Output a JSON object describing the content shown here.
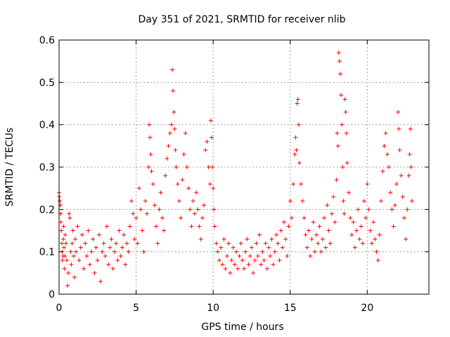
{
  "chart_data": {
    "type": "scatter",
    "title": "Day 351 of 2021, SRMTID for receiver nlib",
    "xlabel": "GPS time / hours",
    "ylabel": "SRMTID / TECUs",
    "xlim": [
      0,
      24
    ],
    "ylim": [
      0,
      0.6
    ],
    "x_ticks": [
      0,
      5,
      10,
      15,
      20
    ],
    "x_tick_labels": [
      "0",
      "5",
      "10",
      "15",
      "20"
    ],
    "y_ticks": [
      0,
      0.1,
      0.2,
      0.3,
      0.4,
      0.5,
      0.6
    ],
    "y_tick_labels": [
      "0",
      "0.1",
      "0.2",
      "0.3",
      "0.4",
      "0.5",
      "0.6"
    ],
    "grid": true,
    "marker": "plus",
    "color": "#ff0000",
    "series": [
      {
        "name": "SRMTID",
        "points": [
          [
            0.0,
            0.24
          ],
          [
            0.02,
            0.23
          ],
          [
            0.05,
            0.22
          ],
          [
            0.08,
            0.21
          ],
          [
            0.1,
            0.19
          ],
          [
            0.12,
            0.17
          ],
          [
            0.15,
            0.15
          ],
          [
            0.18,
            0.12
          ],
          [
            0.2,
            0.1
          ],
          [
            0.22,
            0.08
          ],
          [
            0.25,
            0.09
          ],
          [
            0.28,
            0.13
          ],
          [
            0.3,
            0.16
          ],
          [
            0.32,
            0.11
          ],
          [
            0.35,
            0.06
          ],
          [
            0.38,
            0.09
          ],
          [
            0.4,
            0.14
          ],
          [
            0.45,
            0.12
          ],
          [
            0.5,
            0.08
          ],
          [
            0.55,
            0.02
          ],
          [
            0.6,
            0.05
          ],
          [
            0.65,
            0.19
          ],
          [
            0.7,
            0.18
          ],
          [
            0.75,
            0.1
          ],
          [
            0.8,
            0.07
          ],
          [
            0.85,
            0.12
          ],
          [
            0.9,
            0.15
          ],
          [
            0.95,
            0.09
          ],
          [
            1.0,
            0.04
          ],
          [
            1.05,
            0.13
          ],
          [
            1.1,
            0.1
          ],
          [
            1.2,
            0.16
          ],
          [
            1.3,
            0.08
          ],
          [
            1.4,
            0.11
          ],
          [
            1.5,
            0.14
          ],
          [
            1.6,
            0.06
          ],
          [
            1.7,
            0.12
          ],
          [
            1.8,
            0.09
          ],
          [
            1.9,
            0.15
          ],
          [
            2.0,
            0.07
          ],
          [
            2.1,
            0.1
          ],
          [
            2.2,
            0.13
          ],
          [
            2.3,
            0.05
          ],
          [
            2.4,
            0.11
          ],
          [
            2.5,
            0.08
          ],
          [
            2.6,
            0.14
          ],
          [
            2.7,
            0.03
          ],
          [
            2.8,
            0.1
          ],
          [
            2.9,
            0.12
          ],
          [
            3.0,
            0.09
          ],
          [
            3.1,
            0.16
          ],
          [
            3.2,
            0.07
          ],
          [
            3.3,
            0.11
          ],
          [
            3.4,
            0.13
          ],
          [
            3.5,
            0.06
          ],
          [
            3.6,
            0.1
          ],
          [
            3.7,
            0.12
          ],
          [
            3.8,
            0.08
          ],
          [
            3.9,
            0.15
          ],
          [
            4.0,
            0.09
          ],
          [
            4.1,
            0.11
          ],
          [
            4.2,
            0.14
          ],
          [
            4.3,
            0.07
          ],
          [
            4.4,
            0.12
          ],
          [
            4.5,
            0.1
          ],
          [
            4.6,
            0.16
          ],
          [
            4.7,
            0.22
          ],
          [
            4.8,
            0.19
          ],
          [
            4.9,
            0.13
          ],
          [
            5.0,
            0.18
          ],
          [
            5.1,
            0.12
          ],
          [
            5.2,
            0.25
          ],
          [
            5.3,
            0.2
          ],
          [
            5.4,
            0.15
          ],
          [
            5.5,
            0.1
          ],
          [
            5.6,
            0.22
          ],
          [
            5.7,
            0.19
          ],
          [
            5.8,
            0.3
          ],
          [
            5.85,
            0.4
          ],
          [
            5.9,
            0.37
          ],
          [
            5.95,
            0.33
          ],
          [
            6.0,
            0.29
          ],
          [
            6.1,
            0.26
          ],
          [
            6.2,
            0.21
          ],
          [
            6.3,
            0.16
          ],
          [
            6.4,
            0.12
          ],
          [
            6.5,
            0.2
          ],
          [
            6.6,
            0.24
          ],
          [
            6.7,
            0.18
          ],
          [
            6.8,
            0.15
          ],
          [
            6.9,
            0.28
          ],
          [
            7.0,
            0.32
          ],
          [
            7.1,
            0.35
          ],
          [
            7.2,
            0.38
          ],
          [
            7.3,
            0.4
          ],
          [
            7.35,
            0.53
          ],
          [
            7.4,
            0.48
          ],
          [
            7.45,
            0.43
          ],
          [
            7.5,
            0.39
          ],
          [
            7.55,
            0.34
          ],
          [
            7.6,
            0.3
          ],
          [
            7.7,
            0.26
          ],
          [
            7.8,
            0.22
          ],
          [
            7.9,
            0.18
          ],
          [
            8.0,
            0.27
          ],
          [
            8.1,
            0.33
          ],
          [
            8.2,
            0.38
          ],
          [
            8.3,
            0.3
          ],
          [
            8.4,
            0.25
          ],
          [
            8.5,
            0.2
          ],
          [
            8.6,
            0.16
          ],
          [
            8.7,
            0.22
          ],
          [
            8.8,
            0.19
          ],
          [
            8.9,
            0.24
          ],
          [
            9.0,
            0.2
          ],
          [
            9.1,
            0.16
          ],
          [
            9.2,
            0.13
          ],
          [
            9.3,
            0.18
          ],
          [
            9.4,
            0.21
          ],
          [
            9.5,
            0.34
          ],
          [
            9.6,
            0.36
          ],
          [
            9.7,
            0.3
          ],
          [
            9.8,
            0.26
          ],
          [
            9.85,
            0.41
          ],
          [
            9.9,
            0.37
          ],
          [
            9.95,
            0.3
          ],
          [
            10.0,
            0.25
          ],
          [
            10.05,
            0.2
          ],
          [
            10.1,
            0.16
          ],
          [
            10.2,
            0.12
          ],
          [
            10.3,
            0.1
          ],
          [
            10.4,
            0.08
          ],
          [
            10.5,
            0.11
          ],
          [
            10.6,
            0.07
          ],
          [
            10.7,
            0.13
          ],
          [
            10.8,
            0.06
          ],
          [
            10.9,
            0.09
          ],
          [
            11.0,
            0.12
          ],
          [
            11.1,
            0.05
          ],
          [
            11.2,
            0.08
          ],
          [
            11.3,
            0.11
          ],
          [
            11.4,
            0.07
          ],
          [
            11.5,
            0.1
          ],
          [
            11.6,
            0.06
          ],
          [
            11.7,
            0.09
          ],
          [
            11.8,
            0.12
          ],
          [
            11.9,
            0.08
          ],
          [
            12.0,
            0.06
          ],
          [
            12.1,
            0.1
          ],
          [
            12.2,
            0.13
          ],
          [
            12.3,
            0.07
          ],
          [
            12.4,
            0.09
          ],
          [
            12.5,
            0.11
          ],
          [
            12.6,
            0.05
          ],
          [
            12.7,
            0.08
          ],
          [
            12.8,
            0.12
          ],
          [
            12.9,
            0.09
          ],
          [
            13.0,
            0.14
          ],
          [
            13.1,
            0.07
          ],
          [
            13.2,
            0.1
          ],
          [
            13.3,
            0.08
          ],
          [
            13.4,
            0.12
          ],
          [
            13.5,
            0.06
          ],
          [
            13.6,
            0.11
          ],
          [
            13.7,
            0.09
          ],
          [
            13.8,
            0.13
          ],
          [
            13.9,
            0.07
          ],
          [
            14.0,
            0.1
          ],
          [
            14.1,
            0.14
          ],
          [
            14.2,
            0.12
          ],
          [
            14.3,
            0.08
          ],
          [
            14.4,
            0.15
          ],
          [
            14.5,
            0.11
          ],
          [
            14.6,
            0.17
          ],
          [
            14.7,
            0.13
          ],
          [
            14.8,
            0.09
          ],
          [
            14.9,
            0.16
          ],
          [
            15.0,
            0.22
          ],
          [
            15.1,
            0.18
          ],
          [
            15.2,
            0.26
          ],
          [
            15.3,
            0.33
          ],
          [
            15.35,
            0.37
          ],
          [
            15.4,
            0.34
          ],
          [
            15.45,
            0.45
          ],
          [
            15.5,
            0.46
          ],
          [
            15.55,
            0.4
          ],
          [
            15.6,
            0.31
          ],
          [
            15.7,
            0.26
          ],
          [
            15.8,
            0.22
          ],
          [
            15.9,
            0.18
          ],
          [
            16.0,
            0.14
          ],
          [
            16.1,
            0.11
          ],
          [
            16.2,
            0.15
          ],
          [
            16.3,
            0.09
          ],
          [
            16.4,
            0.13
          ],
          [
            16.5,
            0.17
          ],
          [
            16.6,
            0.1
          ],
          [
            16.7,
            0.14
          ],
          [
            16.8,
            0.12
          ],
          [
            16.9,
            0.16
          ],
          [
            17.0,
            0.1
          ],
          [
            17.1,
            0.13
          ],
          [
            17.2,
            0.18
          ],
          [
            17.3,
            0.11
          ],
          [
            17.4,
            0.21
          ],
          [
            17.5,
            0.15
          ],
          [
            17.6,
            0.12
          ],
          [
            17.7,
            0.19
          ],
          [
            17.8,
            0.23
          ],
          [
            17.9,
            0.17
          ],
          [
            18.0,
            0.27
          ],
          [
            18.05,
            0.38
          ],
          [
            18.1,
            0.35
          ],
          [
            18.15,
            0.57
          ],
          [
            18.2,
            0.55
          ],
          [
            18.25,
            0.52
          ],
          [
            18.3,
            0.47
          ],
          [
            18.35,
            0.4
          ],
          [
            18.4,
            0.3
          ],
          [
            18.45,
            0.22
          ],
          [
            18.5,
            0.19
          ],
          [
            18.55,
            0.46
          ],
          [
            18.6,
            0.43
          ],
          [
            18.65,
            0.38
          ],
          [
            18.7,
            0.31
          ],
          [
            18.8,
            0.24
          ],
          [
            18.9,
            0.18
          ],
          [
            19.0,
            0.14
          ],
          [
            19.1,
            0.17
          ],
          [
            19.2,
            0.11
          ],
          [
            19.3,
            0.15
          ],
          [
            19.4,
            0.2
          ],
          [
            19.5,
            0.13
          ],
          [
            19.6,
            0.16
          ],
          [
            19.7,
            0.12
          ],
          [
            19.8,
            0.22
          ],
          [
            19.9,
            0.18
          ],
          [
            20.0,
            0.26
          ],
          [
            20.1,
            0.2
          ],
          [
            20.2,
            0.15
          ],
          [
            20.3,
            0.12
          ],
          [
            20.4,
            0.17
          ],
          [
            20.5,
            0.13
          ],
          [
            20.6,
            0.1
          ],
          [
            20.7,
            0.08
          ],
          [
            20.8,
            0.14
          ],
          [
            20.9,
            0.22
          ],
          [
            21.0,
            0.29
          ],
          [
            21.1,
            0.35
          ],
          [
            21.2,
            0.38
          ],
          [
            21.3,
            0.33
          ],
          [
            21.4,
            0.3
          ],
          [
            21.5,
            0.24
          ],
          [
            21.6,
            0.2
          ],
          [
            21.7,
            0.16
          ],
          [
            21.8,
            0.21
          ],
          [
            21.9,
            0.26
          ],
          [
            22.0,
            0.43
          ],
          [
            22.05,
            0.39
          ],
          [
            22.1,
            0.34
          ],
          [
            22.2,
            0.28
          ],
          [
            22.3,
            0.23
          ],
          [
            22.4,
            0.18
          ],
          [
            22.5,
            0.13
          ],
          [
            22.6,
            0.2
          ],
          [
            22.7,
            0.28
          ],
          [
            22.75,
            0.33
          ],
          [
            22.8,
            0.39
          ],
          [
            22.85,
            0.3
          ],
          [
            22.9,
            0.22
          ]
        ]
      }
    ]
  }
}
